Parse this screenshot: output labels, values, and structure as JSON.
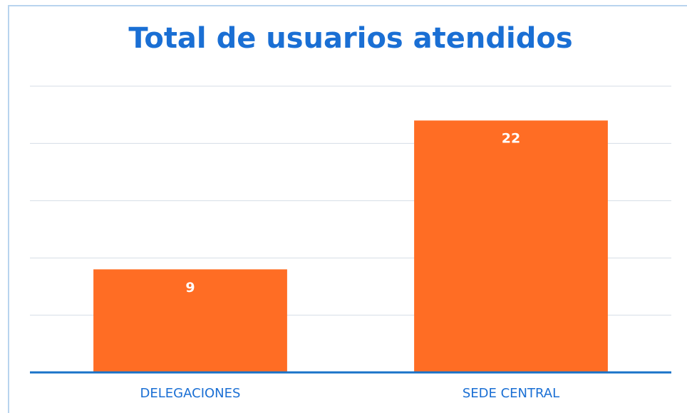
{
  "chart_data": {
    "type": "bar",
    "title": "Total de usuarios atendidos",
    "categories": [
      "DELEGACIONES",
      "SEDE CENTRAL"
    ],
    "values": [
      9,
      22
    ],
    "color": "#ff6d24",
    "ylim": [
      0,
      25
    ],
    "yticks": [
      0,
      5,
      10,
      15,
      20,
      25
    ],
    "grid": true
  }
}
